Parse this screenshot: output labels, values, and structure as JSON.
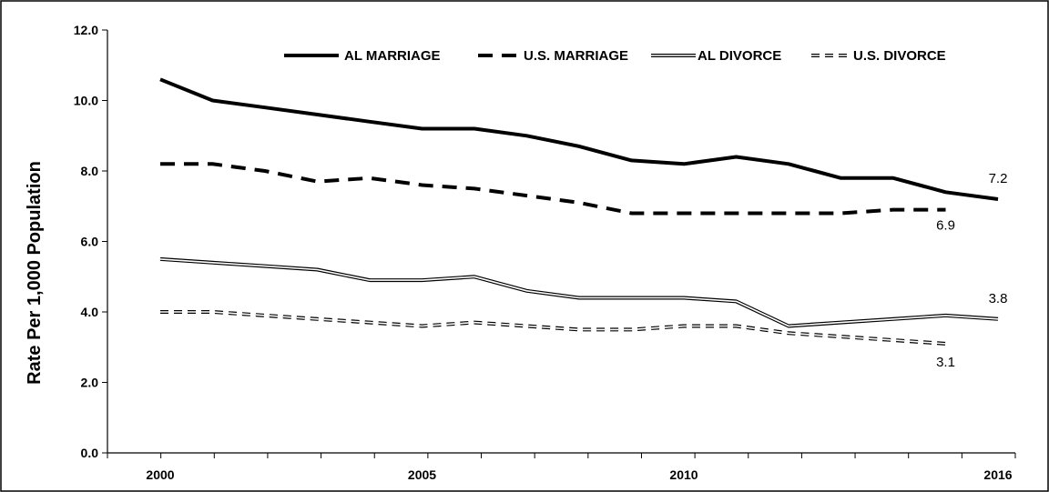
{
  "chart_data": {
    "type": "line",
    "title": "",
    "xlabel": "",
    "ylabel": "Rate Per 1,000 Population",
    "x": [
      2000,
      2001,
      2002,
      2003,
      2004,
      2005,
      2006,
      2007,
      2008,
      2009,
      2010,
      2011,
      2012,
      2013,
      2014,
      2015,
      2016
    ],
    "x_tick_labels": [
      "2000",
      "2005",
      "2010",
      "2016"
    ],
    "x_tick_label_values": [
      2000,
      2005,
      2010,
      2016
    ],
    "ylim": [
      0,
      12
    ],
    "y_tick_labels": [
      "0.0",
      "2.0",
      "4.0",
      "6.0",
      "8.0",
      "10.0",
      "12.0"
    ],
    "y_tick_values": [
      0,
      2,
      4,
      6,
      8,
      10,
      12
    ],
    "grid": false,
    "legend_placement": "top",
    "series": [
      {
        "name": "AL MARRIAGE",
        "style": "solid-thick",
        "color": "#000000",
        "values": [
          10.6,
          10.0,
          9.8,
          9.6,
          9.4,
          9.2,
          9.2,
          9.0,
          8.7,
          8.3,
          8.2,
          8.4,
          8.2,
          7.8,
          7.8,
          7.4,
          7.2
        ]
      },
      {
        "name": "U.S. MARRIAGE",
        "style": "dashed-thick",
        "color": "#000000",
        "values": [
          8.2,
          8.2,
          8.0,
          7.7,
          7.8,
          7.6,
          7.5,
          7.3,
          7.1,
          6.8,
          6.8,
          6.8,
          6.8,
          6.8,
          6.9,
          6.9,
          null
        ]
      },
      {
        "name": "AL DIVORCE",
        "style": "double-solid",
        "color": "#000000",
        "values": [
          5.5,
          5.4,
          5.3,
          5.2,
          4.9,
          4.9,
          5.0,
          4.6,
          4.4,
          4.4,
          4.4,
          4.3,
          3.6,
          3.7,
          3.8,
          3.9,
          3.8
        ]
      },
      {
        "name": "U.S. DIVORCE",
        "style": "double-dashed",
        "color": "#000000",
        "values": [
          4.0,
          4.0,
          3.9,
          3.8,
          3.7,
          3.6,
          3.7,
          3.6,
          3.5,
          3.5,
          3.6,
          3.6,
          3.4,
          3.3,
          3.2,
          3.1,
          null
        ]
      }
    ],
    "end_labels": [
      {
        "text": "7.2",
        "x": 2016,
        "y": 7.2
      },
      {
        "text": "6.9",
        "x": 2015,
        "y": 6.9
      },
      {
        "text": "3.8",
        "x": 2016,
        "y": 3.8
      },
      {
        "text": "3.1",
        "x": 2015,
        "y": 3.1
      }
    ]
  }
}
